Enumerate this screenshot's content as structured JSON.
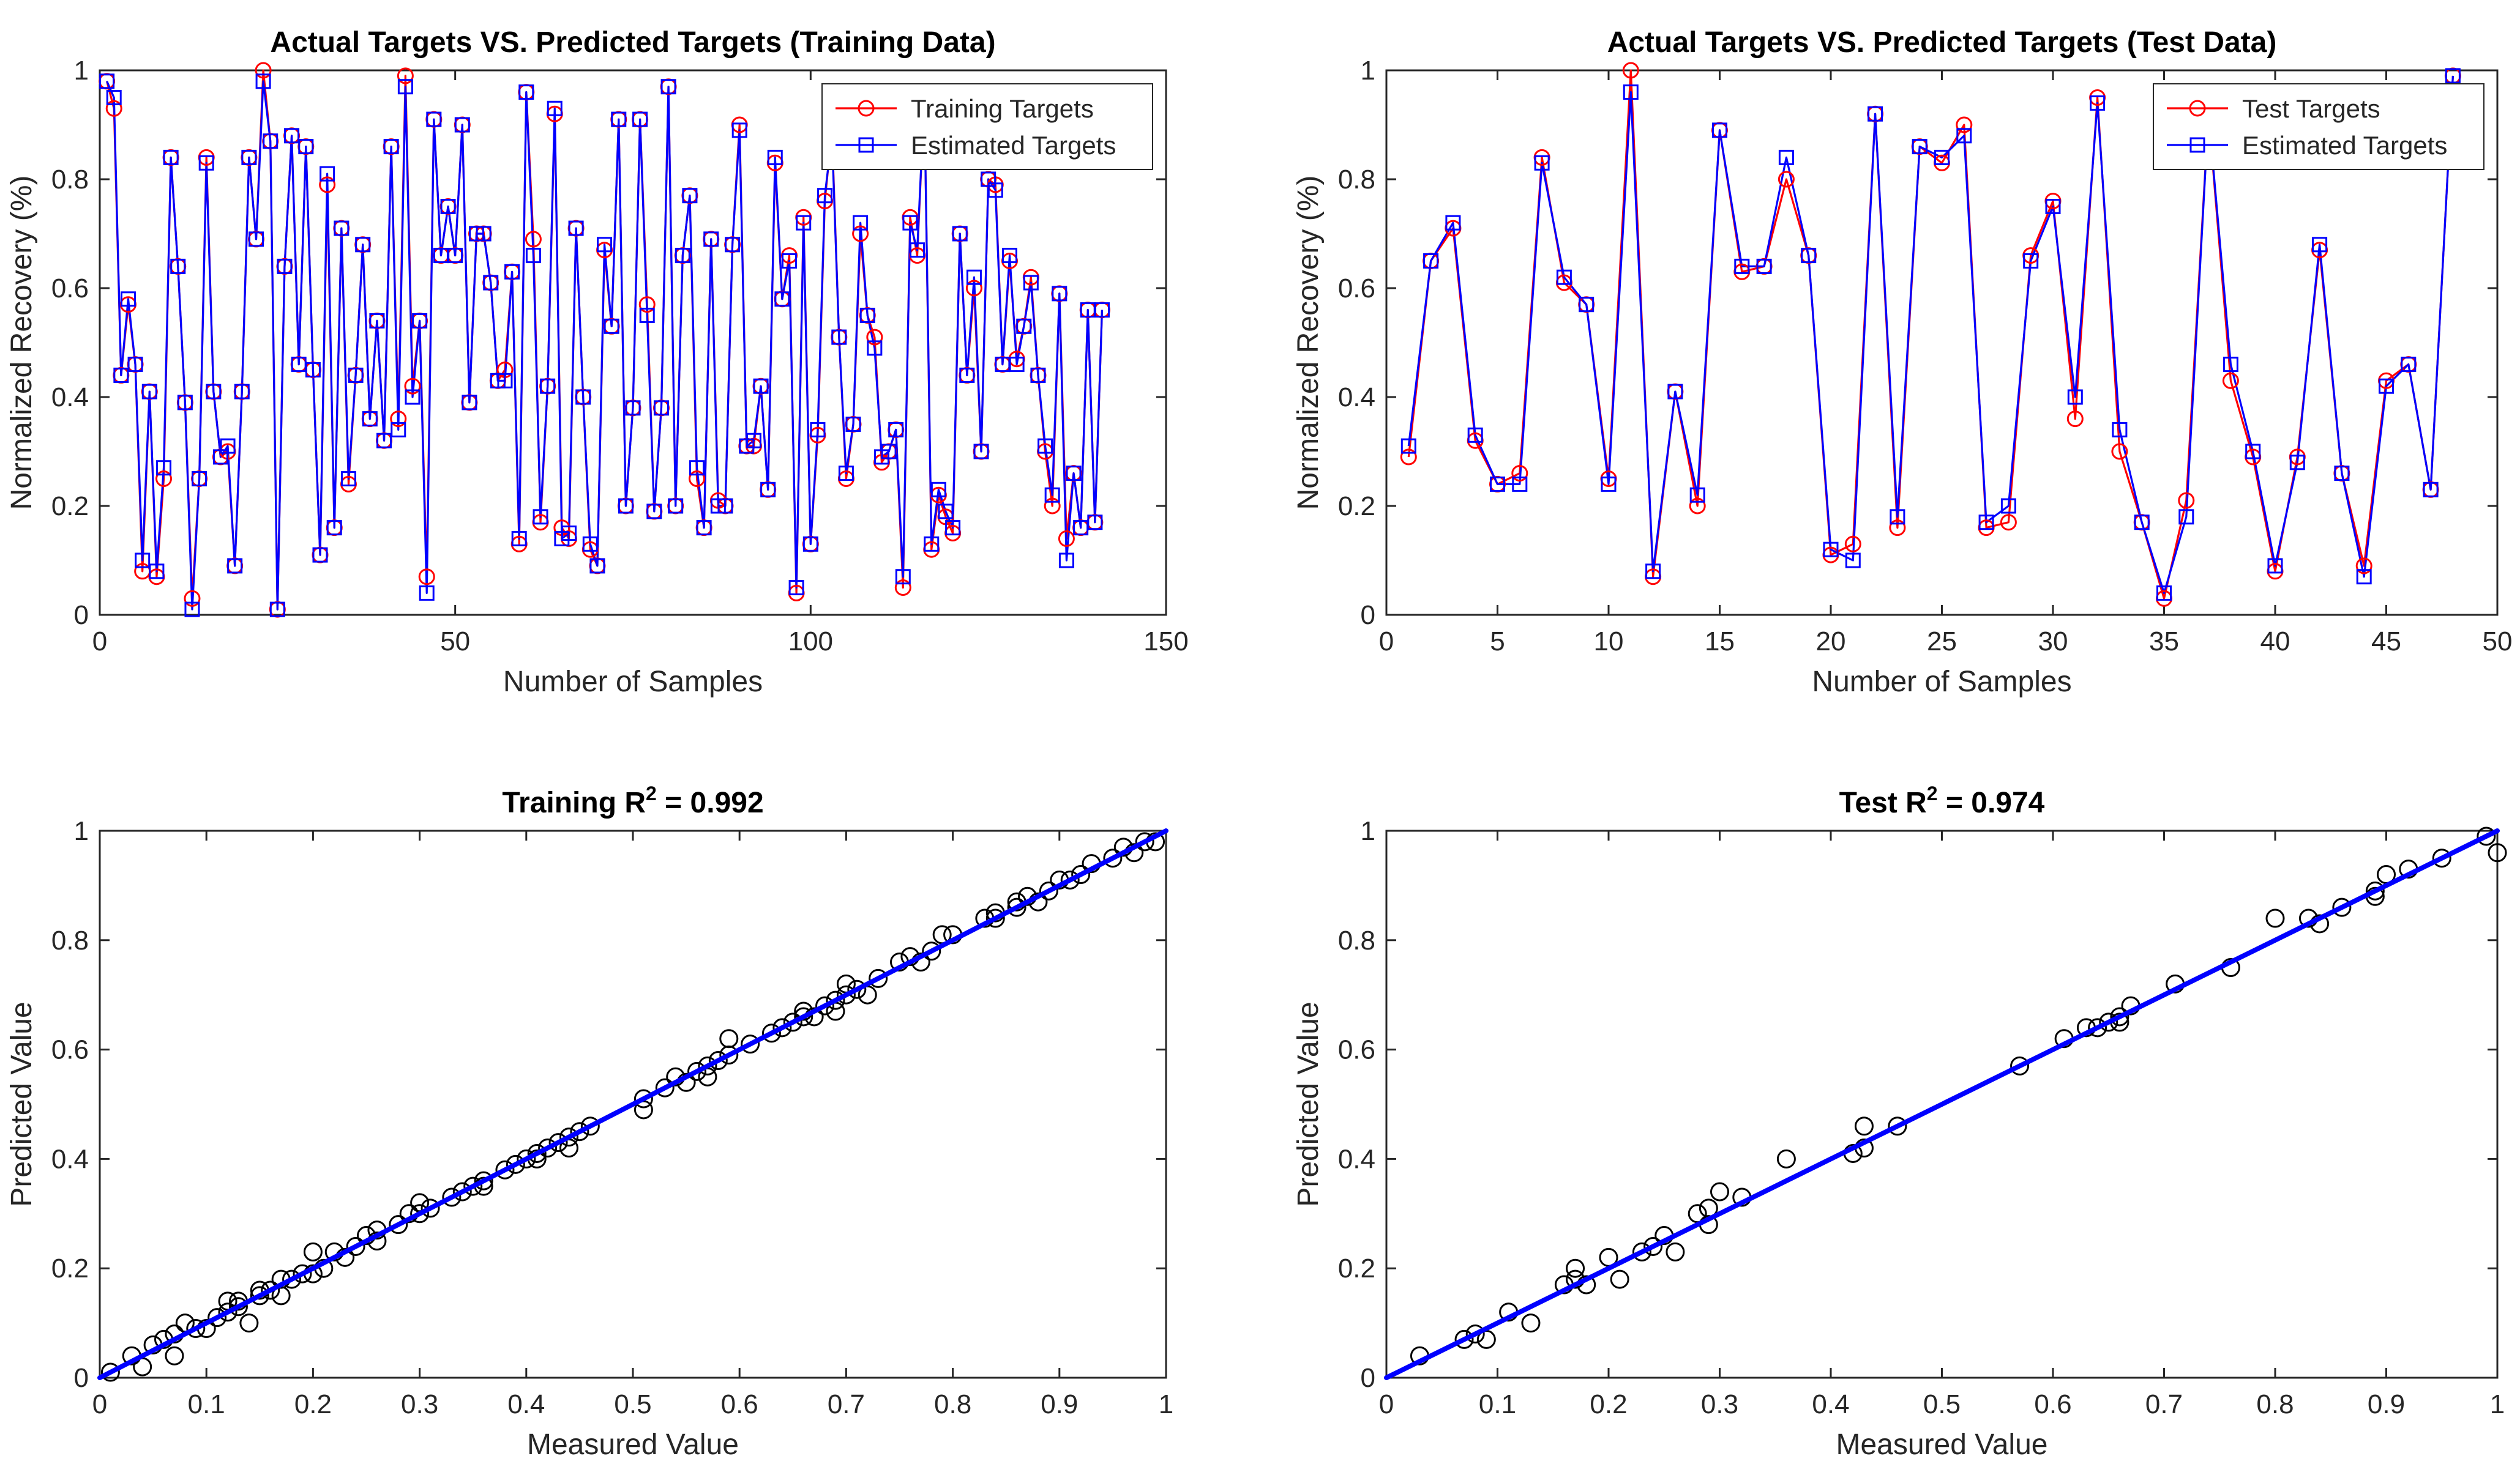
{
  "chart_data": [
    {
      "id": "train-series",
      "type": "line",
      "title": "Actual Targets VS. Predicted Targets (Training Data)",
      "xlabel": "Number of Samples",
      "ylabel": "Normalized Recovery (%)",
      "xlim": [
        0,
        150
      ],
      "ylim": [
        0,
        1
      ],
      "xticks": [
        0,
        50,
        100,
        150
      ],
      "yticks": [
        0,
        0.2,
        0.4,
        0.6,
        0.8,
        1
      ],
      "grid": false,
      "legend": "top-right",
      "series": [
        {
          "name": "Training Targets",
          "color": "#ff0000",
          "marker": "circle",
          "values": [
            0.98,
            0.93,
            0.44,
            0.57,
            0.46,
            0.08,
            0.41,
            0.07,
            0.25,
            0.84,
            0.64,
            0.39,
            0.03,
            0.25,
            0.84,
            0.41,
            0.29,
            0.3,
            0.09,
            0.41,
            0.84,
            0.69,
            1.0,
            0.87,
            0.01,
            0.64,
            0.88,
            0.46,
            0.86,
            0.45,
            0.11,
            0.79,
            0.16,
            0.71,
            0.24,
            0.44,
            0.68,
            0.36,
            0.54,
            0.32,
            0.86,
            0.36,
            0.99,
            0.42,
            0.54,
            0.07,
            0.91,
            0.66,
            0.75,
            0.66,
            0.9,
            0.39,
            0.7,
            0.7,
            0.61,
            0.43,
            0.45,
            0.63,
            0.13,
            0.96,
            0.69,
            0.17,
            0.42,
            0.92,
            0.16,
            0.14,
            0.71,
            0.4,
            0.12,
            0.09,
            0.67,
            0.53,
            0.91,
            0.2,
            0.38,
            0.91,
            0.57,
            0.19,
            0.38,
            0.97,
            0.2,
            0.66,
            0.77,
            0.25,
            0.16,
            0.69,
            0.21,
            0.2,
            0.68,
            0.9,
            0.31,
            0.31,
            0.42,
            0.23,
            0.83,
            0.58,
            0.66,
            0.04,
            0.73,
            0.13,
            0.33,
            0.76,
            0.89,
            0.51,
            0.25,
            0.35,
            0.7,
            0.55,
            0.51,
            0.28,
            0.3,
            0.34,
            0.05,
            0.73,
            0.66,
            0.95,
            0.12,
            0.22,
            0.18,
            0.15,
            0.7,
            0.44,
            0.6,
            0.3,
            0.8,
            0.79,
            0.46,
            0.65,
            0.47,
            0.53,
            0.62,
            0.44,
            0.3,
            0.2,
            0.59,
            0.14,
            0.26,
            0.16,
            0.56,
            0.17,
            0.56
          ]
        },
        {
          "name": "Estimated Targets",
          "color": "#0000ff",
          "marker": "square",
          "values": [
            0.98,
            0.95,
            0.44,
            0.58,
            0.46,
            0.1,
            0.41,
            0.08,
            0.27,
            0.84,
            0.64,
            0.39,
            0.01,
            0.25,
            0.83,
            0.41,
            0.29,
            0.31,
            0.09,
            0.41,
            0.84,
            0.69,
            0.98,
            0.87,
            0.01,
            0.64,
            0.88,
            0.46,
            0.86,
            0.45,
            0.11,
            0.81,
            0.16,
            0.71,
            0.25,
            0.44,
            0.68,
            0.36,
            0.54,
            0.32,
            0.86,
            0.34,
            0.97,
            0.4,
            0.54,
            0.04,
            0.91,
            0.66,
            0.75,
            0.66,
            0.9,
            0.39,
            0.7,
            0.7,
            0.61,
            0.43,
            0.43,
            0.63,
            0.14,
            0.96,
            0.66,
            0.18,
            0.42,
            0.93,
            0.14,
            0.15,
            0.71,
            0.4,
            0.13,
            0.09,
            0.68,
            0.53,
            0.91,
            0.2,
            0.38,
            0.91,
            0.55,
            0.19,
            0.38,
            0.97,
            0.2,
            0.66,
            0.77,
            0.27,
            0.16,
            0.69,
            0.2,
            0.2,
            0.68,
            0.89,
            0.31,
            0.32,
            0.42,
            0.23,
            0.84,
            0.58,
            0.65,
            0.05,
            0.72,
            0.13,
            0.34,
            0.77,
            0.88,
            0.51,
            0.26,
            0.35,
            0.72,
            0.55,
            0.49,
            0.29,
            0.3,
            0.34,
            0.07,
            0.72,
            0.67,
            0.95,
            0.13,
            0.23,
            0.19,
            0.16,
            0.7,
            0.44,
            0.62,
            0.3,
            0.8,
            0.78,
            0.46,
            0.66,
            0.46,
            0.53,
            0.61,
            0.44,
            0.31,
            0.22,
            0.59,
            0.1,
            0.26,
            0.16,
            0.56,
            0.17,
            0.56
          ]
        }
      ]
    },
    {
      "id": "test-series",
      "type": "line",
      "title": "Actual Targets VS. Predicted Targets (Test Data)",
      "xlabel": "Number of Samples",
      "ylabel": "Normalized Recovery (%)",
      "xlim": [
        0,
        50
      ],
      "ylim": [
        0,
        1
      ],
      "xticks": [
        0,
        5,
        10,
        15,
        20,
        25,
        30,
        35,
        40,
        45,
        50
      ],
      "yticks": [
        0,
        0.2,
        0.4,
        0.6,
        0.8,
        1
      ],
      "grid": false,
      "legend": "top-right",
      "series": [
        {
          "name": "Test Targets",
          "color": "#ff0000",
          "marker": "circle",
          "values": [
            0.29,
            0.65,
            0.71,
            0.32,
            0.24,
            0.26,
            0.84,
            0.61,
            0.57,
            0.25,
            1.0,
            0.07,
            0.41,
            0.2,
            0.89,
            0.63,
            0.64,
            0.8,
            0.66,
            0.11,
            0.13,
            0.92,
            0.16,
            0.86,
            0.83,
            0.9,
            0.16,
            0.17,
            0.66,
            0.76,
            0.36,
            0.95,
            0.3,
            0.17,
            0.03,
            0.21,
            0.92,
            0.43,
            0.29,
            0.08,
            0.29,
            0.67,
            0.26,
            0.09,
            0.43,
            0.46,
            0.23,
            0.99
          ]
        },
        {
          "name": "Estimated Targets",
          "color": "#0000ff",
          "marker": "square",
          "values": [
            0.31,
            0.65,
            0.72,
            0.33,
            0.24,
            0.24,
            0.83,
            0.62,
            0.57,
            0.24,
            0.96,
            0.08,
            0.41,
            0.22,
            0.89,
            0.64,
            0.64,
            0.84,
            0.66,
            0.12,
            0.1,
            0.92,
            0.18,
            0.86,
            0.84,
            0.88,
            0.17,
            0.2,
            0.65,
            0.75,
            0.4,
            0.94,
            0.34,
            0.17,
            0.04,
            0.18,
            0.92,
            0.46,
            0.3,
            0.09,
            0.28,
            0.68,
            0.26,
            0.07,
            0.42,
            0.46,
            0.23,
            0.99
          ]
        }
      ]
    },
    {
      "id": "train-scatter",
      "type": "scatter",
      "title": "Training R",
      "title_sup": "2",
      "title_suffix": " = 0.992",
      "xlabel": "Measured Value",
      "ylabel": "Predicted Value",
      "xlim": [
        0,
        1
      ],
      "ylim": [
        0,
        1
      ],
      "xticks": [
        0,
        0.1,
        0.2,
        0.3,
        0.4,
        0.5,
        0.6,
        0.7,
        0.8,
        0.9,
        1
      ],
      "xtick_labels": [
        "0",
        "0.1",
        "0.2",
        "0.3",
        "0.4",
        "0.5",
        "0.6",
        "0.7",
        "0.8",
        "0.9",
        "1"
      ],
      "yticks": [
        0,
        0.2,
        0.4,
        0.6,
        0.8,
        1
      ],
      "fit_line": {
        "color": "#0000ff",
        "from": [
          0,
          0
        ],
        "to": [
          1,
          1
        ]
      },
      "points": [
        [
          0.01,
          0.01
        ],
        [
          0.03,
          0.04
        ],
        [
          0.04,
          0.02
        ],
        [
          0.05,
          0.06
        ],
        [
          0.06,
          0.07
        ],
        [
          0.07,
          0.08
        ],
        [
          0.07,
          0.04
        ],
        [
          0.08,
          0.1
        ],
        [
          0.09,
          0.09
        ],
        [
          0.1,
          0.09
        ],
        [
          0.11,
          0.11
        ],
        [
          0.12,
          0.12
        ],
        [
          0.12,
          0.14
        ],
        [
          0.13,
          0.13
        ],
        [
          0.13,
          0.14
        ],
        [
          0.14,
          0.1
        ],
        [
          0.15,
          0.15
        ],
        [
          0.15,
          0.16
        ],
        [
          0.16,
          0.16
        ],
        [
          0.17,
          0.15
        ],
        [
          0.17,
          0.18
        ],
        [
          0.18,
          0.18
        ],
        [
          0.19,
          0.19
        ],
        [
          0.2,
          0.23
        ],
        [
          0.2,
          0.19
        ],
        [
          0.21,
          0.2
        ],
        [
          0.22,
          0.23
        ],
        [
          0.23,
          0.22
        ],
        [
          0.24,
          0.24
        ],
        [
          0.25,
          0.26
        ],
        [
          0.26,
          0.25
        ],
        [
          0.26,
          0.27
        ],
        [
          0.28,
          0.28
        ],
        [
          0.29,
          0.3
        ],
        [
          0.3,
          0.3
        ],
        [
          0.3,
          0.32
        ],
        [
          0.31,
          0.31
        ],
        [
          0.33,
          0.33
        ],
        [
          0.34,
          0.34
        ],
        [
          0.35,
          0.35
        ],
        [
          0.36,
          0.36
        ],
        [
          0.36,
          0.35
        ],
        [
          0.38,
          0.38
        ],
        [
          0.39,
          0.39
        ],
        [
          0.4,
          0.4
        ],
        [
          0.41,
          0.41
        ],
        [
          0.41,
          0.4
        ],
        [
          0.42,
          0.42
        ],
        [
          0.43,
          0.43
        ],
        [
          0.44,
          0.44
        ],
        [
          0.44,
          0.42
        ],
        [
          0.45,
          0.45
        ],
        [
          0.46,
          0.46
        ],
        [
          0.51,
          0.49
        ],
        [
          0.51,
          0.51
        ],
        [
          0.53,
          0.53
        ],
        [
          0.54,
          0.55
        ],
        [
          0.55,
          0.54
        ],
        [
          0.56,
          0.56
        ],
        [
          0.57,
          0.57
        ],
        [
          0.57,
          0.55
        ],
        [
          0.58,
          0.58
        ],
        [
          0.59,
          0.59
        ],
        [
          0.59,
          0.62
        ],
        [
          0.61,
          0.61
        ],
        [
          0.63,
          0.63
        ],
        [
          0.64,
          0.64
        ],
        [
          0.65,
          0.65
        ],
        [
          0.66,
          0.66
        ],
        [
          0.66,
          0.67
        ],
        [
          0.67,
          0.66
        ],
        [
          0.68,
          0.68
        ],
        [
          0.69,
          0.69
        ],
        [
          0.69,
          0.67
        ],
        [
          0.7,
          0.7
        ],
        [
          0.7,
          0.72
        ],
        [
          0.71,
          0.71
        ],
        [
          0.72,
          0.7
        ],
        [
          0.73,
          0.73
        ],
        [
          0.75,
          0.76
        ],
        [
          0.76,
          0.77
        ],
        [
          0.77,
          0.76
        ],
        [
          0.78,
          0.78
        ],
        [
          0.79,
          0.81
        ],
        [
          0.8,
          0.81
        ],
        [
          0.83,
          0.84
        ],
        [
          0.84,
          0.84
        ],
        [
          0.84,
          0.85
        ],
        [
          0.86,
          0.86
        ],
        [
          0.86,
          0.87
        ],
        [
          0.87,
          0.88
        ],
        [
          0.88,
          0.87
        ],
        [
          0.89,
          0.89
        ],
        [
          0.9,
          0.91
        ],
        [
          0.91,
          0.91
        ],
        [
          0.92,
          0.92
        ],
        [
          0.93,
          0.94
        ],
        [
          0.95,
          0.95
        ],
        [
          0.96,
          0.97
        ],
        [
          0.97,
          0.96
        ],
        [
          0.98,
          0.98
        ],
        [
          0.99,
          0.98
        ]
      ]
    },
    {
      "id": "test-scatter",
      "type": "scatter",
      "title": "Test R",
      "title_sup": "2",
      "title_suffix": " = 0.974",
      "xlabel": "Measured Value",
      "ylabel": "Predicted Value",
      "xlim": [
        0,
        1
      ],
      "ylim": [
        0,
        1
      ],
      "xticks": [
        0,
        0.1,
        0.2,
        0.3,
        0.4,
        0.5,
        0.6,
        0.7,
        0.8,
        0.9,
        1
      ],
      "xtick_labels": [
        "0",
        "0.1",
        "0.2",
        "0.3",
        "0.4",
        "0.5",
        "0.6",
        "0.7",
        "0.8",
        "0.9",
        "1"
      ],
      "yticks": [
        0,
        0.2,
        0.4,
        0.6,
        0.8,
        1
      ],
      "fit_line": {
        "color": "#0000ff",
        "from": [
          0,
          0
        ],
        "to": [
          1,
          1
        ]
      },
      "points": [
        [
          0.03,
          0.04
        ],
        [
          0.07,
          0.07
        ],
        [
          0.08,
          0.08
        ],
        [
          0.09,
          0.07
        ],
        [
          0.11,
          0.12
        ],
        [
          0.13,
          0.1
        ],
        [
          0.16,
          0.17
        ],
        [
          0.17,
          0.2
        ],
        [
          0.17,
          0.18
        ],
        [
          0.18,
          0.17
        ],
        [
          0.2,
          0.22
        ],
        [
          0.21,
          0.18
        ],
        [
          0.23,
          0.23
        ],
        [
          0.24,
          0.24
        ],
        [
          0.25,
          0.26
        ],
        [
          0.26,
          0.23
        ],
        [
          0.28,
          0.3
        ],
        [
          0.29,
          0.31
        ],
        [
          0.29,
          0.28
        ],
        [
          0.3,
          0.34
        ],
        [
          0.32,
          0.33
        ],
        [
          0.36,
          0.4
        ],
        [
          0.42,
          0.41
        ],
        [
          0.43,
          0.46
        ],
        [
          0.43,
          0.42
        ],
        [
          0.46,
          0.46
        ],
        [
          0.57,
          0.57
        ],
        [
          0.61,
          0.62
        ],
        [
          0.63,
          0.64
        ],
        [
          0.64,
          0.64
        ],
        [
          0.65,
          0.65
        ],
        [
          0.66,
          0.65
        ],
        [
          0.66,
          0.66
        ],
        [
          0.67,
          0.68
        ],
        [
          0.71,
          0.72
        ],
        [
          0.76,
          0.75
        ],
        [
          0.8,
          0.84
        ],
        [
          0.83,
          0.84
        ],
        [
          0.84,
          0.83
        ],
        [
          0.86,
          0.86
        ],
        [
          0.89,
          0.88
        ],
        [
          0.89,
          0.89
        ],
        [
          0.9,
          0.92
        ],
        [
          0.92,
          0.93
        ],
        [
          0.95,
          0.95
        ],
        [
          0.99,
          0.99
        ],
        [
          1.0,
          0.96
        ]
      ]
    }
  ]
}
